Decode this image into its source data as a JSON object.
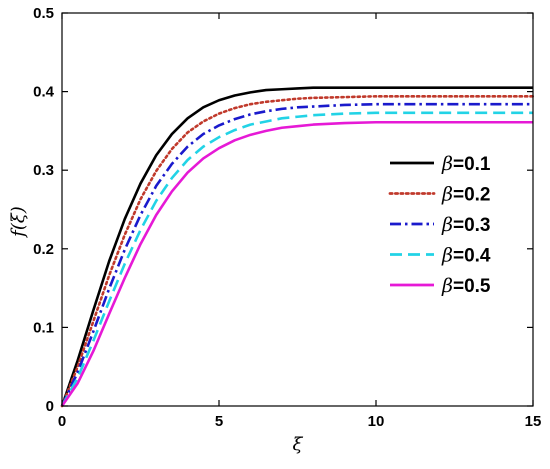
{
  "chart_data": {
    "type": "line",
    "title": "",
    "xlabel": "ξ",
    "ylabel": "f(ξ)",
    "xlim": [
      0,
      15
    ],
    "ylim": [
      0,
      0.5
    ],
    "xticks": [
      "0",
      "5",
      "10",
      "15"
    ],
    "yticks": [
      "0",
      "0.1",
      "0.2",
      "0.3",
      "0.4",
      "0.5"
    ],
    "grid": false,
    "legend_position": "right-center",
    "legend_symbol": "β",
    "x": [
      0,
      0.5,
      1,
      1.5,
      2,
      2.5,
      3,
      3.5,
      4,
      4.5,
      5,
      5.5,
      6,
      6.5,
      7,
      7.5,
      8,
      9,
      10,
      11,
      12,
      13,
      14,
      15
    ],
    "series": [
      {
        "name": "=0.1",
        "color": "#000000",
        "dash": "solid",
        "values": [
          0,
          0.058,
          0.122,
          0.184,
          0.238,
          0.283,
          0.319,
          0.346,
          0.366,
          0.38,
          0.389,
          0.395,
          0.399,
          0.402,
          0.403,
          0.404,
          0.405,
          0.405,
          0.405,
          0.405,
          0.405,
          0.405,
          0.405,
          0.405
        ]
      },
      {
        "name": "=0.2",
        "color": "#c0392b",
        "dash": "dotted",
        "values": [
          0,
          0.05,
          0.108,
          0.166,
          0.218,
          0.263,
          0.299,
          0.327,
          0.348,
          0.362,
          0.372,
          0.379,
          0.384,
          0.387,
          0.389,
          0.391,
          0.392,
          0.393,
          0.394,
          0.394,
          0.394,
          0.394,
          0.394,
          0.394
        ]
      },
      {
        "name": "=0.3",
        "color": "#1a1acc",
        "dash": "dashdot",
        "values": [
          0,
          0.043,
          0.095,
          0.149,
          0.199,
          0.243,
          0.28,
          0.308,
          0.33,
          0.346,
          0.357,
          0.365,
          0.371,
          0.375,
          0.378,
          0.38,
          0.381,
          0.383,
          0.384,
          0.384,
          0.384,
          0.384,
          0.384,
          0.384
        ]
      },
      {
        "name": "=0.4",
        "color": "#22d3e6",
        "dash": "dashed",
        "values": [
          0,
          0.036,
          0.083,
          0.133,
          0.181,
          0.224,
          0.261,
          0.29,
          0.313,
          0.33,
          0.342,
          0.351,
          0.358,
          0.362,
          0.366,
          0.368,
          0.37,
          0.372,
          0.373,
          0.373,
          0.373,
          0.373,
          0.373,
          0.373
        ]
      },
      {
        "name": "=0.5",
        "color": "#e619d6",
        "dash": "solid",
        "values": [
          0,
          0.029,
          0.07,
          0.117,
          0.163,
          0.206,
          0.243,
          0.273,
          0.297,
          0.315,
          0.328,
          0.338,
          0.345,
          0.35,
          0.354,
          0.356,
          0.358,
          0.36,
          0.361,
          0.361,
          0.361,
          0.361,
          0.361,
          0.361
        ]
      }
    ]
  }
}
